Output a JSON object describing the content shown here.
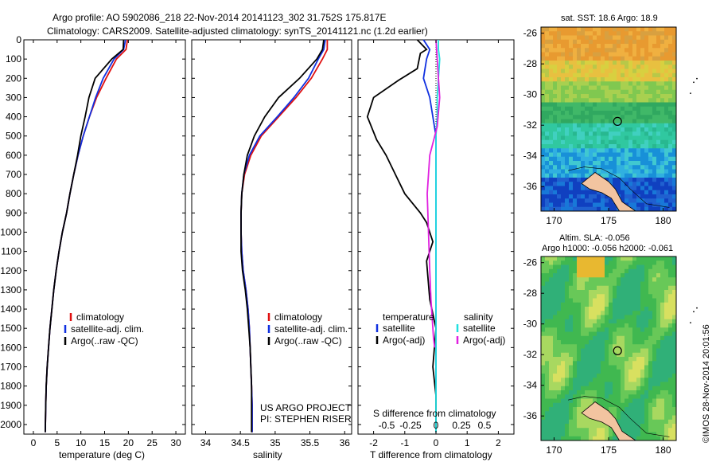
{
  "header": {
    "line1": "Argo profile: AO 5902086_218 22-Nov-2014 20141123_302 31.752S 175.817E",
    "line2": "Climatology: CARS2009. Satellite-adjusted climatology: synTS_20141121.nc (1.2d earlier)"
  },
  "depth_ticks": [
    "0",
    "100",
    "200",
    "300",
    "400",
    "500",
    "600",
    "700",
    "800",
    "900",
    "1000",
    "1100",
    "1200",
    "1300",
    "1400",
    "1500",
    "1600",
    "1700",
    "1800",
    "1900",
    "2000"
  ],
  "colors": {
    "climatology": "#e01010",
    "satellite": "#1030e0",
    "argo": "#000000",
    "sat_salinity": "#20e0e0",
    "argo_salinity": "#e020e0"
  },
  "project": {
    "line1": "US ARGO PROJECT",
    "line2": "PI: STEPHEN RISER"
  },
  "stamp": "©IMOS 28-Nov-2014 20:01:56",
  "legend": {
    "climatology": "climatology",
    "satellite": "satellite-adj. clim.",
    "argo": "Argo(..raw -QC)"
  },
  "diff_legend": {
    "temperature": "temperature",
    "salinity": "salinity",
    "satellite": "satellite",
    "argo": "Argo(-adj)"
  },
  "maps": {
    "sst_title": "sat. SST: 18.6 Argo: 18.9",
    "sla_title1": "Altim. SLA: -0.056",
    "sla_title2": "Argo h1000: -0.056 h2000: -0.061",
    "lat_ticks": [
      "-26",
      "-28",
      "-30",
      "-32",
      "-34",
      "-36"
    ],
    "lon_ticks": [
      "170",
      "175",
      "180"
    ],
    "profile_lat": -31.752,
    "profile_lon": 175.817
  },
  "chart_data": [
    {
      "type": "line",
      "title": "",
      "xlabel": "temperature (deg C)",
      "ylabel": "",
      "xlim": [
        -2,
        32
      ],
      "ylim": [
        2050,
        0
      ],
      "xticks": [
        "0",
        "5",
        "10",
        "15",
        "20",
        "25",
        "30"
      ],
      "series": [
        {
          "name": "climatology",
          "color": "red",
          "x": [
            19.8,
            19.5,
            17.5,
            15.3,
            13.3,
            11.8,
            10.5,
            9.4,
            8.5,
            7.7,
            7.0,
            6.1,
            5.4,
            4.8,
            4.3,
            3.9,
            3.5,
            3.2,
            2.9,
            2.7,
            2.6,
            2.5
          ],
          "y": [
            0,
            50,
            100,
            200,
            300,
            400,
            500,
            600,
            700,
            800,
            900,
            1000,
            1100,
            1200,
            1300,
            1400,
            1500,
            1600,
            1700,
            1800,
            1900,
            2040
          ]
        },
        {
          "name": "satellite-adj. clim.",
          "color": "blue",
          "x": [
            19.4,
            19.0,
            17.0,
            14.7,
            13.1,
            11.8,
            10.5,
            9.4,
            8.5,
            7.7,
            7.0,
            6.1,
            5.4,
            4.8,
            4.3,
            3.9,
            3.5,
            3.2,
            2.9,
            2.7,
            2.6,
            2.5
          ],
          "y": [
            0,
            50,
            100,
            200,
            300,
            400,
            500,
            600,
            700,
            800,
            900,
            1000,
            1100,
            1200,
            1300,
            1400,
            1500,
            1600,
            1700,
            1800,
            1900,
            2040
          ]
        },
        {
          "name": "Argo(..raw -QC)",
          "color": "black",
          "x": [
            19.0,
            18.9,
            16.5,
            13.0,
            11.7,
            10.9,
            10.0,
            9.3,
            8.5,
            7.7,
            7.0,
            6.1,
            5.4,
            4.8,
            4.3,
            3.9,
            3.5,
            3.2,
            2.9,
            2.7,
            2.6,
            2.5
          ],
          "y": [
            0,
            50,
            100,
            200,
            300,
            400,
            500,
            600,
            700,
            800,
            900,
            1000,
            1100,
            1200,
            1300,
            1400,
            1500,
            1600,
            1700,
            1800,
            1900,
            2040
          ]
        }
      ]
    },
    {
      "type": "line",
      "title": "",
      "xlabel": "salinity",
      "ylabel": "",
      "xlim": [
        33.8,
        36.1
      ],
      "ylim": [
        2050,
        0
      ],
      "xticks": [
        "34",
        "34.5",
        "35",
        "35.5",
        "36"
      ],
      "project_text": [
        "US ARGO PROJECT",
        "PI: STEPHEN RISER"
      ],
      "series": [
        {
          "name": "climatology",
          "color": "red",
          "x": [
            35.75,
            35.75,
            35.68,
            35.52,
            35.3,
            35.05,
            34.8,
            34.65,
            34.56,
            34.52,
            34.51,
            34.51,
            34.52,
            34.54,
            34.58,
            34.61,
            34.63,
            34.64,
            34.65,
            34.66,
            34.67,
            34.67
          ],
          "y": [
            0,
            50,
            100,
            200,
            300,
            400,
            500,
            600,
            700,
            800,
            900,
            1000,
            1100,
            1200,
            1300,
            1400,
            1500,
            1600,
            1700,
            1800,
            1900,
            2040
          ]
        },
        {
          "name": "satellite-adj. clim.",
          "color": "blue",
          "x": [
            35.72,
            35.7,
            35.62,
            35.48,
            35.27,
            35.03,
            34.78,
            34.63,
            34.55,
            34.52,
            34.51,
            34.51,
            34.52,
            34.54,
            34.58,
            34.61,
            34.63,
            34.64,
            34.65,
            34.66,
            34.67,
            34.67
          ],
          "y": [
            0,
            50,
            100,
            200,
            300,
            400,
            500,
            600,
            700,
            800,
            900,
            1000,
            1100,
            1200,
            1300,
            1400,
            1500,
            1600,
            1700,
            1800,
            1900,
            2040
          ]
        },
        {
          "name": "Argo(..raw -QC)",
          "color": "black",
          "x": [
            35.7,
            35.68,
            35.6,
            35.35,
            35.05,
            34.85,
            34.7,
            34.6,
            34.55,
            34.52,
            34.51,
            34.51,
            34.51,
            34.53,
            34.57,
            34.6,
            34.62,
            34.64,
            34.65,
            34.66,
            34.66,
            34.66
          ],
          "y": [
            0,
            50,
            100,
            200,
            300,
            400,
            500,
            600,
            700,
            800,
            900,
            1000,
            1100,
            1200,
            1300,
            1400,
            1500,
            1600,
            1700,
            1800,
            1900,
            2040
          ]
        }
      ]
    },
    {
      "type": "line",
      "title": "",
      "xlabel": "T difference from climatology",
      "xlabel_top": "S difference from climatology",
      "ylabel": "",
      "xlim": [
        -2.5,
        2.5
      ],
      "ylim": [
        2050,
        0
      ],
      "xticks": [
        "-2",
        "-1",
        "0",
        "1",
        "2"
      ],
      "xticks_top": [
        "-0.5",
        "-0.25",
        "0",
        "0.25",
        "0.5"
      ],
      "series": [
        {
          "name": "T satellite",
          "color": "blue",
          "x": [
            -0.4,
            -0.2,
            -0.3,
            -0.4,
            -0.2,
            -0.1,
            0,
            0,
            0,
            0,
            0,
            0,
            0,
            0,
            0,
            0
          ],
          "y": [
            0,
            50,
            100,
            200,
            300,
            400,
            500,
            700,
            900,
            1100,
            1300,
            1500,
            1700,
            1900,
            2000,
            2040
          ]
        },
        {
          "name": "T Argo(-adj)",
          "color": "black",
          "x": [
            -0.6,
            -0.3,
            -0.5,
            -0.6,
            -1.2,
            -2.0,
            -2.2,
            -1.9,
            -1.6,
            -1.3,
            -1.0,
            -0.5,
            -0.3,
            -0.1,
            -0.3,
            -0.2,
            0,
            -0.1,
            0,
            0,
            0
          ],
          "y": [
            0,
            50,
            70,
            150,
            210,
            300,
            400,
            520,
            600,
            700,
            800,
            900,
            950,
            1050,
            1150,
            1350,
            1500,
            1700,
            1850,
            1950,
            2040
          ]
        },
        {
          "name": "S satellite",
          "color": "cyan",
          "x": [
            0.02,
            0.02,
            0.03,
            0.02,
            0.01,
            0.01,
            0,
            0,
            0,
            0,
            0,
            0,
            0,
            0,
            0
          ],
          "y": [
            0,
            50,
            100,
            200,
            300,
            400,
            500,
            700,
            900,
            1100,
            1300,
            1500,
            1700,
            1900,
            2040
          ]
        },
        {
          "name": "S Argo(-adj)",
          "color": "magenta",
          "x": [
            0,
            0.01,
            0.02,
            0.03,
            0.01,
            -0.05,
            -0.07,
            -0.06,
            -0.05,
            -0.04,
            -0.03,
            -0.02,
            -0.01
          ],
          "y": [
            0,
            100,
            200,
            300,
            450,
            600,
            800,
            1000,
            1200,
            1350,
            1450,
            1550,
            1600
          ]
        }
      ]
    }
  ]
}
